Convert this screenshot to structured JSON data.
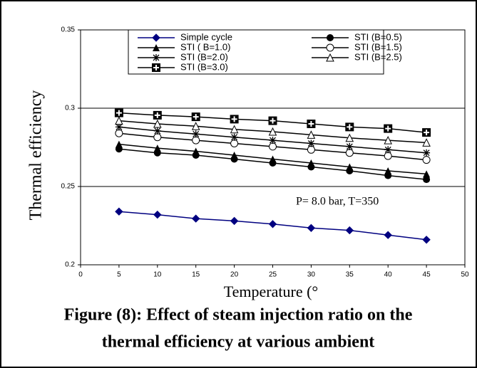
{
  "chart_data": {
    "type": "line",
    "caption": [
      "Figure (8): Effect of steam injection ratio on the",
      "thermal efficiency at various ambient"
    ],
    "xlabel": "Temperature (°",
    "ylabel": "Thermal efficiency",
    "annotation": "P= 8.0 bar, T=350",
    "x": [
      5,
      10,
      15,
      20,
      25,
      30,
      35,
      40,
      45
    ],
    "xlim": [
      0,
      50
    ],
    "xticks": [
      0,
      5,
      10,
      15,
      20,
      25,
      30,
      35,
      40,
      45,
      50
    ],
    "ylim": [
      0.2,
      0.35
    ],
    "yticks": [
      0.2,
      0.25,
      0.3,
      0.35
    ],
    "grid": true,
    "series": [
      {
        "name": "Simple cycle",
        "color": "#000080",
        "marker": "diamond",
        "values": [
          0.234,
          0.232,
          0.2295,
          0.228,
          0.226,
          0.2235,
          0.222,
          0.219,
          0.216
        ]
      },
      {
        "name": "STI (B=0.5)",
        "color": "#000000",
        "marker": "circle",
        "values": [
          0.274,
          0.2715,
          0.27,
          0.2675,
          0.265,
          0.2625,
          0.26,
          0.257,
          0.2545
        ]
      },
      {
        "name": "STI ( B=1.0)",
        "color": "#000000",
        "marker": "triangle",
        "values": [
          0.277,
          0.2745,
          0.2725,
          0.27,
          0.2675,
          0.265,
          0.2625,
          0.26,
          0.258
        ]
      },
      {
        "name": "STI (B=1.5)",
        "color": "#000000",
        "marker": "open-circle",
        "values": [
          0.284,
          0.2815,
          0.2795,
          0.2775,
          0.2755,
          0.2735,
          0.2715,
          0.2695,
          0.267
        ]
      },
      {
        "name": "STI (B=2.0)",
        "color": "#000000",
        "marker": "asterisk",
        "values": [
          0.288,
          0.2855,
          0.2835,
          0.2815,
          0.2795,
          0.2775,
          0.2755,
          0.2735,
          0.2715
        ]
      },
      {
        "name": "STI (B=2.5)",
        "color": "#000000",
        "marker": "open-triangle",
        "values": [
          0.292,
          0.29,
          0.2885,
          0.2865,
          0.285,
          0.283,
          0.281,
          0.2795,
          0.278
        ]
      },
      {
        "name": "STI (B=3.0)",
        "color": "#000000",
        "marker": "square-plus",
        "values": [
          0.297,
          0.2955,
          0.2945,
          0.293,
          0.292,
          0.29,
          0.288,
          0.287,
          0.2845
        ]
      }
    ]
  }
}
